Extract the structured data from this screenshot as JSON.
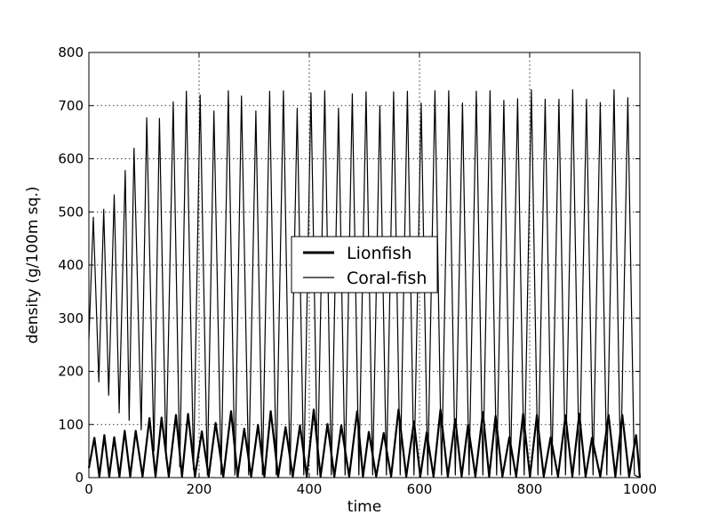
{
  "chart_data": {
    "type": "line",
    "xlabel": "time",
    "ylabel": "density (g/100m sq.)",
    "xlim": [
      0,
      1000
    ],
    "ylim": [
      0,
      800
    ],
    "xticks": [
      "0",
      "200",
      "400",
      "600",
      "800",
      "1000"
    ],
    "yticks": [
      "0",
      "100",
      "200",
      "300",
      "400",
      "500",
      "600",
      "700",
      "800"
    ],
    "grid": true,
    "legend_position": "center",
    "series": [
      {
        "name": "Lionfish",
        "style": "thick",
        "color": "#000000",
        "peaks": [
          [
            10,
            75
          ],
          [
            28,
            80
          ],
          [
            46,
            76
          ],
          [
            65,
            88
          ],
          [
            85,
            88
          ],
          [
            110,
            112
          ],
          [
            132,
            113
          ],
          [
            158,
            118
          ],
          [
            180,
            120
          ],
          [
            205,
            87
          ],
          [
            230,
            103
          ],
          [
            258,
            125
          ],
          [
            282,
            92
          ],
          [
            307,
            99
          ],
          [
            330,
            125
          ],
          [
            357,
            95
          ],
          [
            383,
            98
          ],
          [
            408,
            128
          ],
          [
            433,
            101
          ],
          [
            458,
            98
          ],
          [
            487,
            125
          ],
          [
            508,
            86
          ],
          [
            535,
            84
          ],
          [
            562,
            128
          ],
          [
            590,
            106
          ],
          [
            613,
            85
          ],
          [
            638,
            128
          ],
          [
            665,
            110
          ],
          [
            688,
            99
          ],
          [
            715,
            123
          ],
          [
            738,
            116
          ],
          [
            763,
            76
          ],
          [
            788,
            120
          ],
          [
            813,
            118
          ],
          [
            838,
            76
          ],
          [
            865,
            117
          ],
          [
            890,
            120
          ],
          [
            913,
            75
          ],
          [
            943,
            118
          ],
          [
            968,
            118
          ],
          [
            993,
            80
          ]
        ],
        "troughs_min": 0
      },
      {
        "name": "Coral-fish",
        "style": "thin",
        "color": "#000000",
        "peaks": [
          [
            8,
            490
          ],
          [
            27,
            505
          ],
          [
            46,
            532
          ],
          [
            66,
            578
          ],
          [
            82,
            620
          ],
          [
            105,
            677
          ],
          [
            128,
            676
          ],
          [
            153,
            707
          ],
          [
            177,
            727
          ],
          [
            202,
            720
          ],
          [
            227,
            690
          ],
          [
            253,
            728
          ],
          [
            277,
            718
          ],
          [
            303,
            690
          ],
          [
            328,
            727
          ],
          [
            353,
            728
          ],
          [
            378,
            695
          ],
          [
            403,
            724
          ],
          [
            428,
            728
          ],
          [
            453,
            695
          ],
          [
            478,
            722
          ],
          [
            503,
            726
          ],
          [
            528,
            700
          ],
          [
            553,
            726
          ],
          [
            578,
            727
          ],
          [
            603,
            705
          ],
          [
            628,
            728
          ],
          [
            653,
            728
          ],
          [
            678,
            705
          ],
          [
            703,
            727
          ],
          [
            728,
            728
          ],
          [
            753,
            710
          ],
          [
            778,
            713
          ],
          [
            803,
            730
          ],
          [
            828,
            712
          ],
          [
            853,
            712
          ],
          [
            878,
            730
          ],
          [
            903,
            712
          ],
          [
            928,
            706
          ],
          [
            953,
            730
          ],
          [
            978,
            715
          ]
        ],
        "troughs": [
          [
            18,
            180
          ],
          [
            36,
            155
          ],
          [
            55,
            122
          ],
          [
            73,
            108
          ],
          [
            95,
            90
          ],
          [
            118,
            50
          ],
          [
            140,
            35
          ],
          [
            165,
            20
          ],
          [
            190,
            15
          ],
          [
            215,
            5
          ],
          [
            240,
            5
          ],
          [
            265,
            5
          ],
          [
            290,
            5
          ],
          [
            315,
            5
          ],
          [
            340,
            5
          ],
          [
            365,
            5
          ],
          [
            390,
            5
          ],
          [
            415,
            5
          ],
          [
            440,
            5
          ],
          [
            465,
            5
          ],
          [
            490,
            5
          ],
          [
            515,
            5
          ],
          [
            540,
            5
          ],
          [
            565,
            5
          ],
          [
            590,
            5
          ],
          [
            615,
            5
          ],
          [
            640,
            5
          ],
          [
            665,
            5
          ],
          [
            690,
            5
          ],
          [
            715,
            5
          ],
          [
            740,
            5
          ],
          [
            765,
            5
          ],
          [
            790,
            5
          ],
          [
            815,
            5
          ],
          [
            840,
            5
          ],
          [
            865,
            5
          ],
          [
            890,
            5
          ],
          [
            915,
            5
          ],
          [
            940,
            5
          ],
          [
            965,
            5
          ],
          [
            990,
            5
          ]
        ],
        "start": [
          0,
          260
        ],
        "end": [
          1000,
          0
        ]
      }
    ]
  }
}
